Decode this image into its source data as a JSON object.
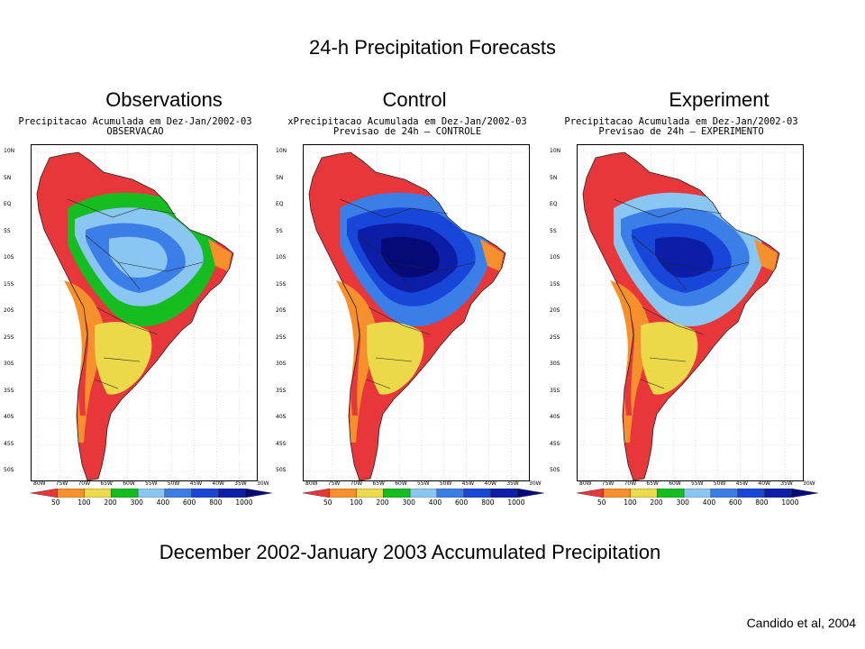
{
  "slide": {
    "title": "24-h Precipitation Forecasts",
    "caption": "December 2002-January 2003 Accumulated Precipitation",
    "credit": "Candido et al, 2004"
  },
  "panels": [
    {
      "heading": "Observations",
      "line1": "Precipitacao Acumulada em Dez-Jan/2002-03",
      "line2": "OBSERVACAO",
      "wetness": 0
    },
    {
      "heading": "Control",
      "line1": "xPrecipitacao Acumulada em Dez-Jan/2002-03",
      "line2": "Previsao de 24h – CONTROLE",
      "wetness": 2
    },
    {
      "heading": "Experiment",
      "line1": "Precipitacao Acumulada em Dez-Jan/2002-03",
      "line2": "Previsao de 24h – EXPERIMENTO",
      "wetness": 1
    }
  ],
  "axes": {
    "lat_labels": [
      "10N",
      "5N",
      "EQ",
      "5S",
      "10S",
      "15S",
      "20S",
      "25S",
      "30S",
      "35S",
      "40S",
      "45S",
      "50S"
    ],
    "lon_labels": [
      "80W",
      "75W",
      "70W",
      "65W",
      "60W",
      "55W",
      "50W",
      "45W",
      "40W",
      "35W",
      "30W"
    ]
  },
  "colorbar": {
    "labels": [
      "50",
      "100",
      "200",
      "300",
      "400",
      "600",
      "800",
      "1000"
    ],
    "colors": [
      "#e8373a",
      "#f6902d",
      "#ecd94a",
      "#16bd20",
      "#8ac6f2",
      "#3b7ee8",
      "#1746d8",
      "#0c1ea8",
      "#050a78"
    ]
  }
}
